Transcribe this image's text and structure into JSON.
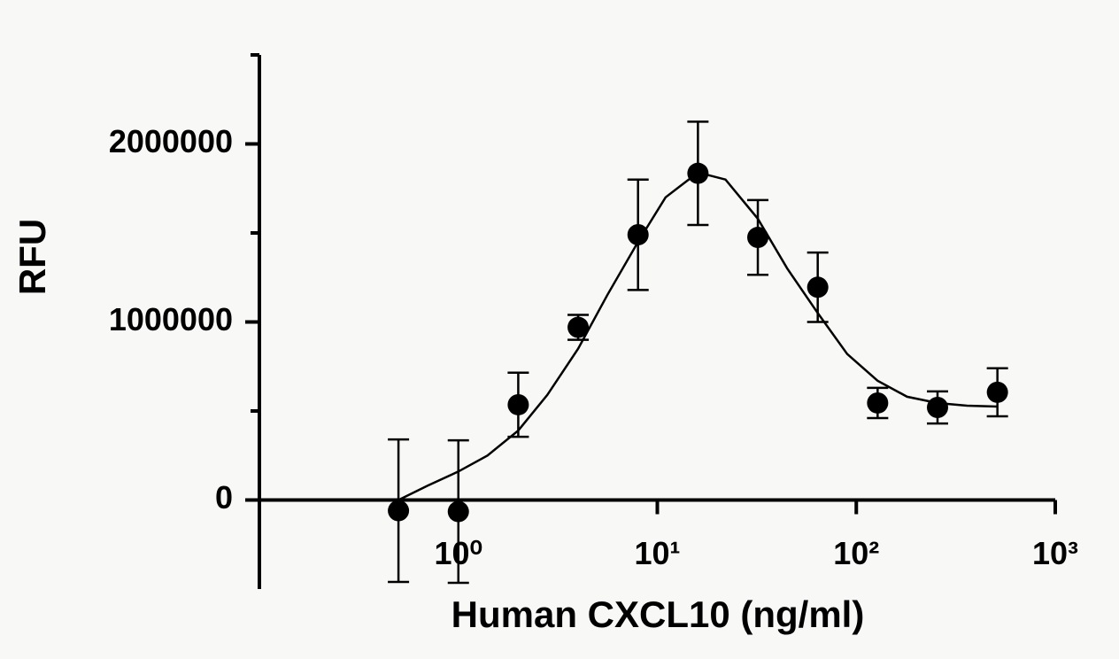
{
  "chart_data": {
    "type": "scatter",
    "x_label": "Human CXCL10 (ng/ml)",
    "y_label": "RFU",
    "xscale": "log",
    "xlim": [
      0.1,
      1000
    ],
    "xticks": [
      {
        "value": 1,
        "label": "10⁰"
      },
      {
        "value": 10,
        "label": "10¹"
      },
      {
        "value": 100,
        "label": "10²"
      },
      {
        "value": 1000,
        "label": "10³"
      }
    ],
    "ylim": [
      -500000,
      2500000
    ],
    "yticks": [
      0,
      1000000,
      2000000
    ],
    "yminorticks": [
      500000,
      1500000,
      2500000
    ],
    "color": "#000000",
    "points": {
      "x": [
        0.5,
        1,
        2,
        4,
        8,
        16,
        32,
        64,
        128,
        256,
        512
      ],
      "values": [
        -60000,
        -65000,
        535000,
        970000,
        1490000,
        1835000,
        1475000,
        1195000,
        545000,
        520000,
        605000
      ],
      "errors": [
        400000,
        400000,
        180000,
        70000,
        310000,
        290000,
        210000,
        195000,
        85000,
        90000,
        135000
      ]
    },
    "fit": {
      "x": [
        0.5,
        0.7,
        1,
        1.4,
        2,
        2.8,
        4,
        5.6,
        8,
        11,
        16,
        22,
        32,
        45,
        64,
        90,
        128,
        180,
        256,
        360,
        512
      ],
      "values": [
        0,
        80000,
        160000,
        250000,
        390000,
        590000,
        850000,
        1150000,
        1450000,
        1700000,
        1840000,
        1800000,
        1580000,
        1300000,
        1050000,
        820000,
        670000,
        580000,
        545000,
        530000,
        525000
      ]
    }
  }
}
